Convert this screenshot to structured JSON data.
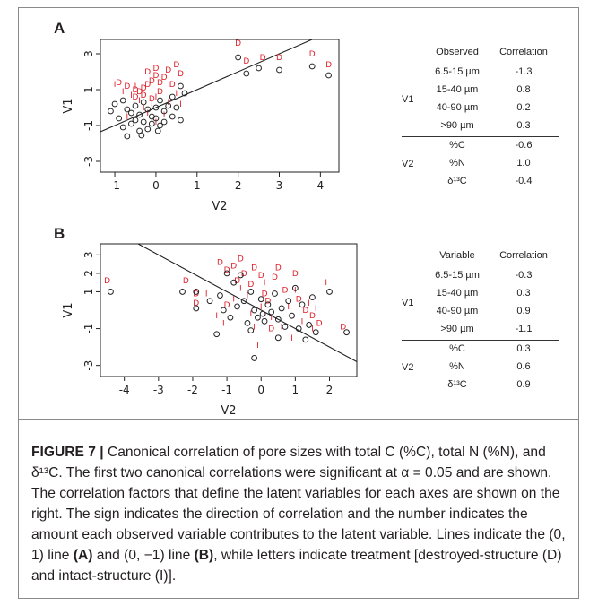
{
  "chart_data": [
    {
      "panel": "A",
      "type": "scatter",
      "xlabel": "V2",
      "ylabel": "V1",
      "xlim": [
        -1.35,
        4.45
      ],
      "ylim": [
        -3.6,
        3.8
      ],
      "xticks": [
        "-1",
        "0",
        "1",
        "2",
        "3",
        "4"
      ],
      "yticks": [
        "3",
        "1",
        "-1",
        "-3"
      ],
      "line": {
        "intercept": 0,
        "slope": 1
      },
      "series": [
        {
          "name": "D",
          "color": "#e0202a",
          "marker": "D",
          "points": [
            [
              -0.9,
              1.4
            ],
            [
              -0.7,
              1.2
            ],
            [
              -0.5,
              1.0
            ],
            [
              -0.4,
              0.9
            ],
            [
              -0.3,
              1.1
            ],
            [
              -0.2,
              1.3
            ],
            [
              -0.1,
              1.5
            ],
            [
              0.0,
              1.8
            ],
            [
              0.0,
              2.2
            ],
            [
              -0.2,
              2.0
            ],
            [
              0.1,
              1.4
            ],
            [
              0.1,
              0.9
            ],
            [
              0.2,
              1.7
            ],
            [
              0.3,
              2.1
            ],
            [
              0.4,
              1.3
            ],
            [
              0.5,
              2.4
            ],
            [
              0.6,
              1.9
            ],
            [
              -0.3,
              0.7
            ],
            [
              -0.5,
              0.6
            ],
            [
              -0.1,
              0.5
            ],
            [
              2.0,
              3.6
            ],
            [
              2.2,
              2.6
            ],
            [
              2.6,
              2.8
            ],
            [
              3.0,
              2.8
            ],
            [
              3.8,
              3.0
            ],
            [
              4.2,
              2.4
            ]
          ]
        },
        {
          "name": "I",
          "color": "#e0202a",
          "marker": "I",
          "points": [
            [
              -1.0,
              1.3
            ],
            [
              -0.8,
              0.9
            ],
            [
              -0.6,
              0.7
            ],
            [
              -0.4,
              0.4
            ],
            [
              -0.3,
              0.0
            ],
            [
              -0.2,
              -0.3
            ],
            [
              -0.1,
              0.2
            ],
            [
              0.0,
              0.6
            ],
            [
              0.1,
              1.1
            ],
            [
              0.2,
              -0.4
            ],
            [
              0.3,
              0.3
            ],
            [
              0.5,
              0.8
            ],
            [
              -0.7,
              -0.5
            ],
            [
              -0.5,
              1.2
            ],
            [
              0.0,
              -0.8
            ],
            [
              0.6,
              0.2
            ]
          ]
        },
        {
          "name": "open circles",
          "color": "#222222",
          "marker": "o",
          "points": [
            [
              -1.1,
              -0.2
            ],
            [
              -1.0,
              0.2
            ],
            [
              -0.9,
              -0.6
            ],
            [
              -0.8,
              -1.1
            ],
            [
              -0.7,
              -1.6
            ],
            [
              -0.6,
              -0.9
            ],
            [
              -0.6,
              -0.3
            ],
            [
              -0.5,
              0.1
            ],
            [
              -0.5,
              -0.7
            ],
            [
              -0.4,
              -1.3
            ],
            [
              -0.4,
              -0.4
            ],
            [
              -0.3,
              0.3
            ],
            [
              -0.3,
              -0.8
            ],
            [
              -0.2,
              -1.2
            ],
            [
              -0.2,
              -0.1
            ],
            [
              -0.1,
              -0.5
            ],
            [
              -0.1,
              -0.9
            ],
            [
              0.0,
              0.0
            ],
            [
              0.0,
              -0.6
            ],
            [
              0.1,
              -1.0
            ],
            [
              0.1,
              0.4
            ],
            [
              0.2,
              -0.2
            ],
            [
              0.2,
              -0.8
            ],
            [
              0.3,
              0.1
            ],
            [
              0.4,
              -0.5
            ],
            [
              0.4,
              0.6
            ],
            [
              0.5,
              0.0
            ],
            [
              0.6,
              -0.7
            ],
            [
              0.6,
              1.2
            ],
            [
              0.7,
              0.8
            ],
            [
              -0.7,
              -0.1
            ],
            [
              -0.8,
              0.4
            ],
            [
              -0.35,
              -1.55
            ],
            [
              0.05,
              -1.3
            ],
            [
              2.0,
              2.8
            ],
            [
              2.2,
              1.9
            ],
            [
              2.5,
              2.2
            ],
            [
              3.0,
              2.1
            ],
            [
              3.8,
              2.3
            ],
            [
              4.2,
              1.8
            ]
          ]
        }
      ],
      "table": {
        "header": [
          "Observed",
          "Correlation"
        ],
        "groups": [
          {
            "label": "V1",
            "rows": [
              [
                "6.5-15 µm",
                "-1.3"
              ],
              [
                "15-40 µm",
                "0.8"
              ],
              [
                "40-90 µm",
                "0.2"
              ],
              [
                ">90 µm",
                "0.3"
              ]
            ]
          },
          {
            "label": "V2",
            "rows": [
              [
                "%C",
                "-0.6"
              ],
              [
                "%N",
                "1.0"
              ],
              [
                "δ¹³C",
                "-0.4"
              ]
            ]
          }
        ]
      }
    },
    {
      "panel": "B",
      "type": "scatter",
      "xlabel": "V2",
      "ylabel": "V1",
      "xlim": [
        -4.7,
        2.8
      ],
      "ylim": [
        -3.6,
        3.6
      ],
      "xticks": [
        "-4",
        "-3",
        "-2",
        "-1",
        "0",
        "1",
        "2"
      ],
      "yticks": [
        "3",
        "2",
        "1",
        "-1",
        "-3"
      ],
      "line": {
        "intercept": 0,
        "slope": -1
      },
      "series": [
        {
          "name": "D",
          "color": "#e0202a",
          "marker": "D",
          "points": [
            [
              -4.5,
              1.6
            ],
            [
              -2.2,
              1.6
            ],
            [
              -1.9,
              0.9
            ],
            [
              -1.9,
              0.4
            ],
            [
              -1.2,
              2.6
            ],
            [
              -1.0,
              2.2
            ],
            [
              -0.8,
              2.4
            ],
            [
              -0.6,
              2.8
            ],
            [
              -0.5,
              2.0
            ],
            [
              -0.3,
              1.4
            ],
            [
              -0.2,
              2.3
            ],
            [
              0.0,
              1.9
            ],
            [
              0.1,
              0.9
            ],
            [
              0.2,
              0.5
            ],
            [
              0.4,
              1.8
            ],
            [
              0.5,
              2.3
            ],
            [
              0.7,
              1.1
            ],
            [
              1.0,
              2.0
            ],
            [
              1.1,
              0.6
            ],
            [
              1.3,
              0.0
            ],
            [
              1.5,
              -0.3
            ],
            [
              1.7,
              -0.7
            ],
            [
              -1.0,
              0.3
            ],
            [
              0.3,
              -1.0
            ],
            [
              2.4,
              -0.9
            ],
            [
              -0.7,
              1.6
            ]
          ]
        },
        {
          "name": "I",
          "color": "#e0202a",
          "marker": "I",
          "points": [
            [
              -1.3,
              -0.3
            ],
            [
              -1.1,
              -0.7
            ],
            [
              -0.8,
              0.6
            ],
            [
              -0.6,
              1.2
            ],
            [
              -0.4,
              0.8
            ],
            [
              -0.3,
              -0.2
            ],
            [
              -0.2,
              -0.9
            ],
            [
              -0.1,
              -1.9
            ],
            [
              0.0,
              0.2
            ],
            [
              0.1,
              1.5
            ],
            [
              0.3,
              -0.4
            ],
            [
              0.6,
              -0.9
            ],
            [
              0.8,
              0.2
            ],
            [
              1.0,
              1.1
            ],
            [
              1.2,
              -0.6
            ],
            [
              1.4,
              0.4
            ],
            [
              1.6,
              0.1
            ],
            [
              1.9,
              1.5
            ],
            [
              -1.6,
              0.9
            ],
            [
              0.9,
              -1.5
            ],
            [
              1.5,
              -1.0
            ]
          ]
        },
        {
          "name": "open circles",
          "color": "#222222",
          "marker": "o",
          "points": [
            [
              -4.4,
              1.0
            ],
            [
              -2.3,
              1.0
            ],
            [
              -1.9,
              1.0
            ],
            [
              -1.9,
              0.1
            ],
            [
              -1.3,
              -1.3
            ],
            [
              -1.2,
              0.8
            ],
            [
              -1.1,
              0.0
            ],
            [
              -1.0,
              2.0
            ],
            [
              -0.9,
              -0.4
            ],
            [
              -0.8,
              1.5
            ],
            [
              -0.7,
              0.2
            ],
            [
              -0.6,
              1.9
            ],
            [
              -0.5,
              0.5
            ],
            [
              -0.4,
              -0.7
            ],
            [
              -0.3,
              1.0
            ],
            [
              -0.2,
              0.0
            ],
            [
              -0.1,
              -0.4
            ],
            [
              0.0,
              0.6
            ],
            [
              0.05,
              -0.2
            ],
            [
              0.1,
              -0.6
            ],
            [
              0.2,
              0.3
            ],
            [
              0.3,
              -0.1
            ],
            [
              0.4,
              0.9
            ],
            [
              0.5,
              -0.5
            ],
            [
              0.6,
              0.1
            ],
            [
              0.7,
              -0.9
            ],
            [
              0.8,
              0.5
            ],
            [
              0.9,
              -0.3
            ],
            [
              1.0,
              1.2
            ],
            [
              1.1,
              -1.0
            ],
            [
              1.2,
              0.3
            ],
            [
              1.3,
              -1.6
            ],
            [
              1.4,
              -0.8
            ],
            [
              1.5,
              0.7
            ],
            [
              1.6,
              -1.2
            ],
            [
              2.0,
              1.0
            ],
            [
              2.5,
              -1.2
            ],
            [
              -0.2,
              -2.6
            ],
            [
              -0.3,
              -1.1
            ],
            [
              0.5,
              -1.5
            ],
            [
              -1.5,
              0.5
            ]
          ]
        }
      ],
      "table": {
        "header": [
          "Variable",
          "Correlation"
        ],
        "groups": [
          {
            "label": "V1",
            "rows": [
              [
                "6.5-15 µm",
                "-0.3"
              ],
              [
                "15-40 µm",
                "0.3"
              ],
              [
                "40-90 µm",
                "0.9"
              ],
              [
                ">90 µm",
                "-1.1"
              ]
            ]
          },
          {
            "label": "V2",
            "rows": [
              [
                "%C",
                "0.3"
              ],
              [
                "%N",
                "0.6"
              ],
              [
                "δ¹³C",
                "0.9"
              ]
            ]
          }
        ]
      }
    }
  ],
  "caption": {
    "figure_label": "FIGURE 7 |",
    "line1": " Canonical correlation of pore sizes with total C (%C), total N (%N), and δ¹³C. The first two canonical correlations were significant at α = 0.05 and are shown. The correlation factors that define the latent variables for each axes are shown on the right. The sign indicates the direction of correlation and the number indicates the amount each observed variable contributes to the latent variable. Lines indicate the (0, 1) line ",
    "ref_a": "(A)",
    "line2": " and (0, −1) line ",
    "ref_b": "(B)",
    "line3": ", while letters indicate treatment [destroyed-structure (D) and intact-structure (I)]."
  }
}
